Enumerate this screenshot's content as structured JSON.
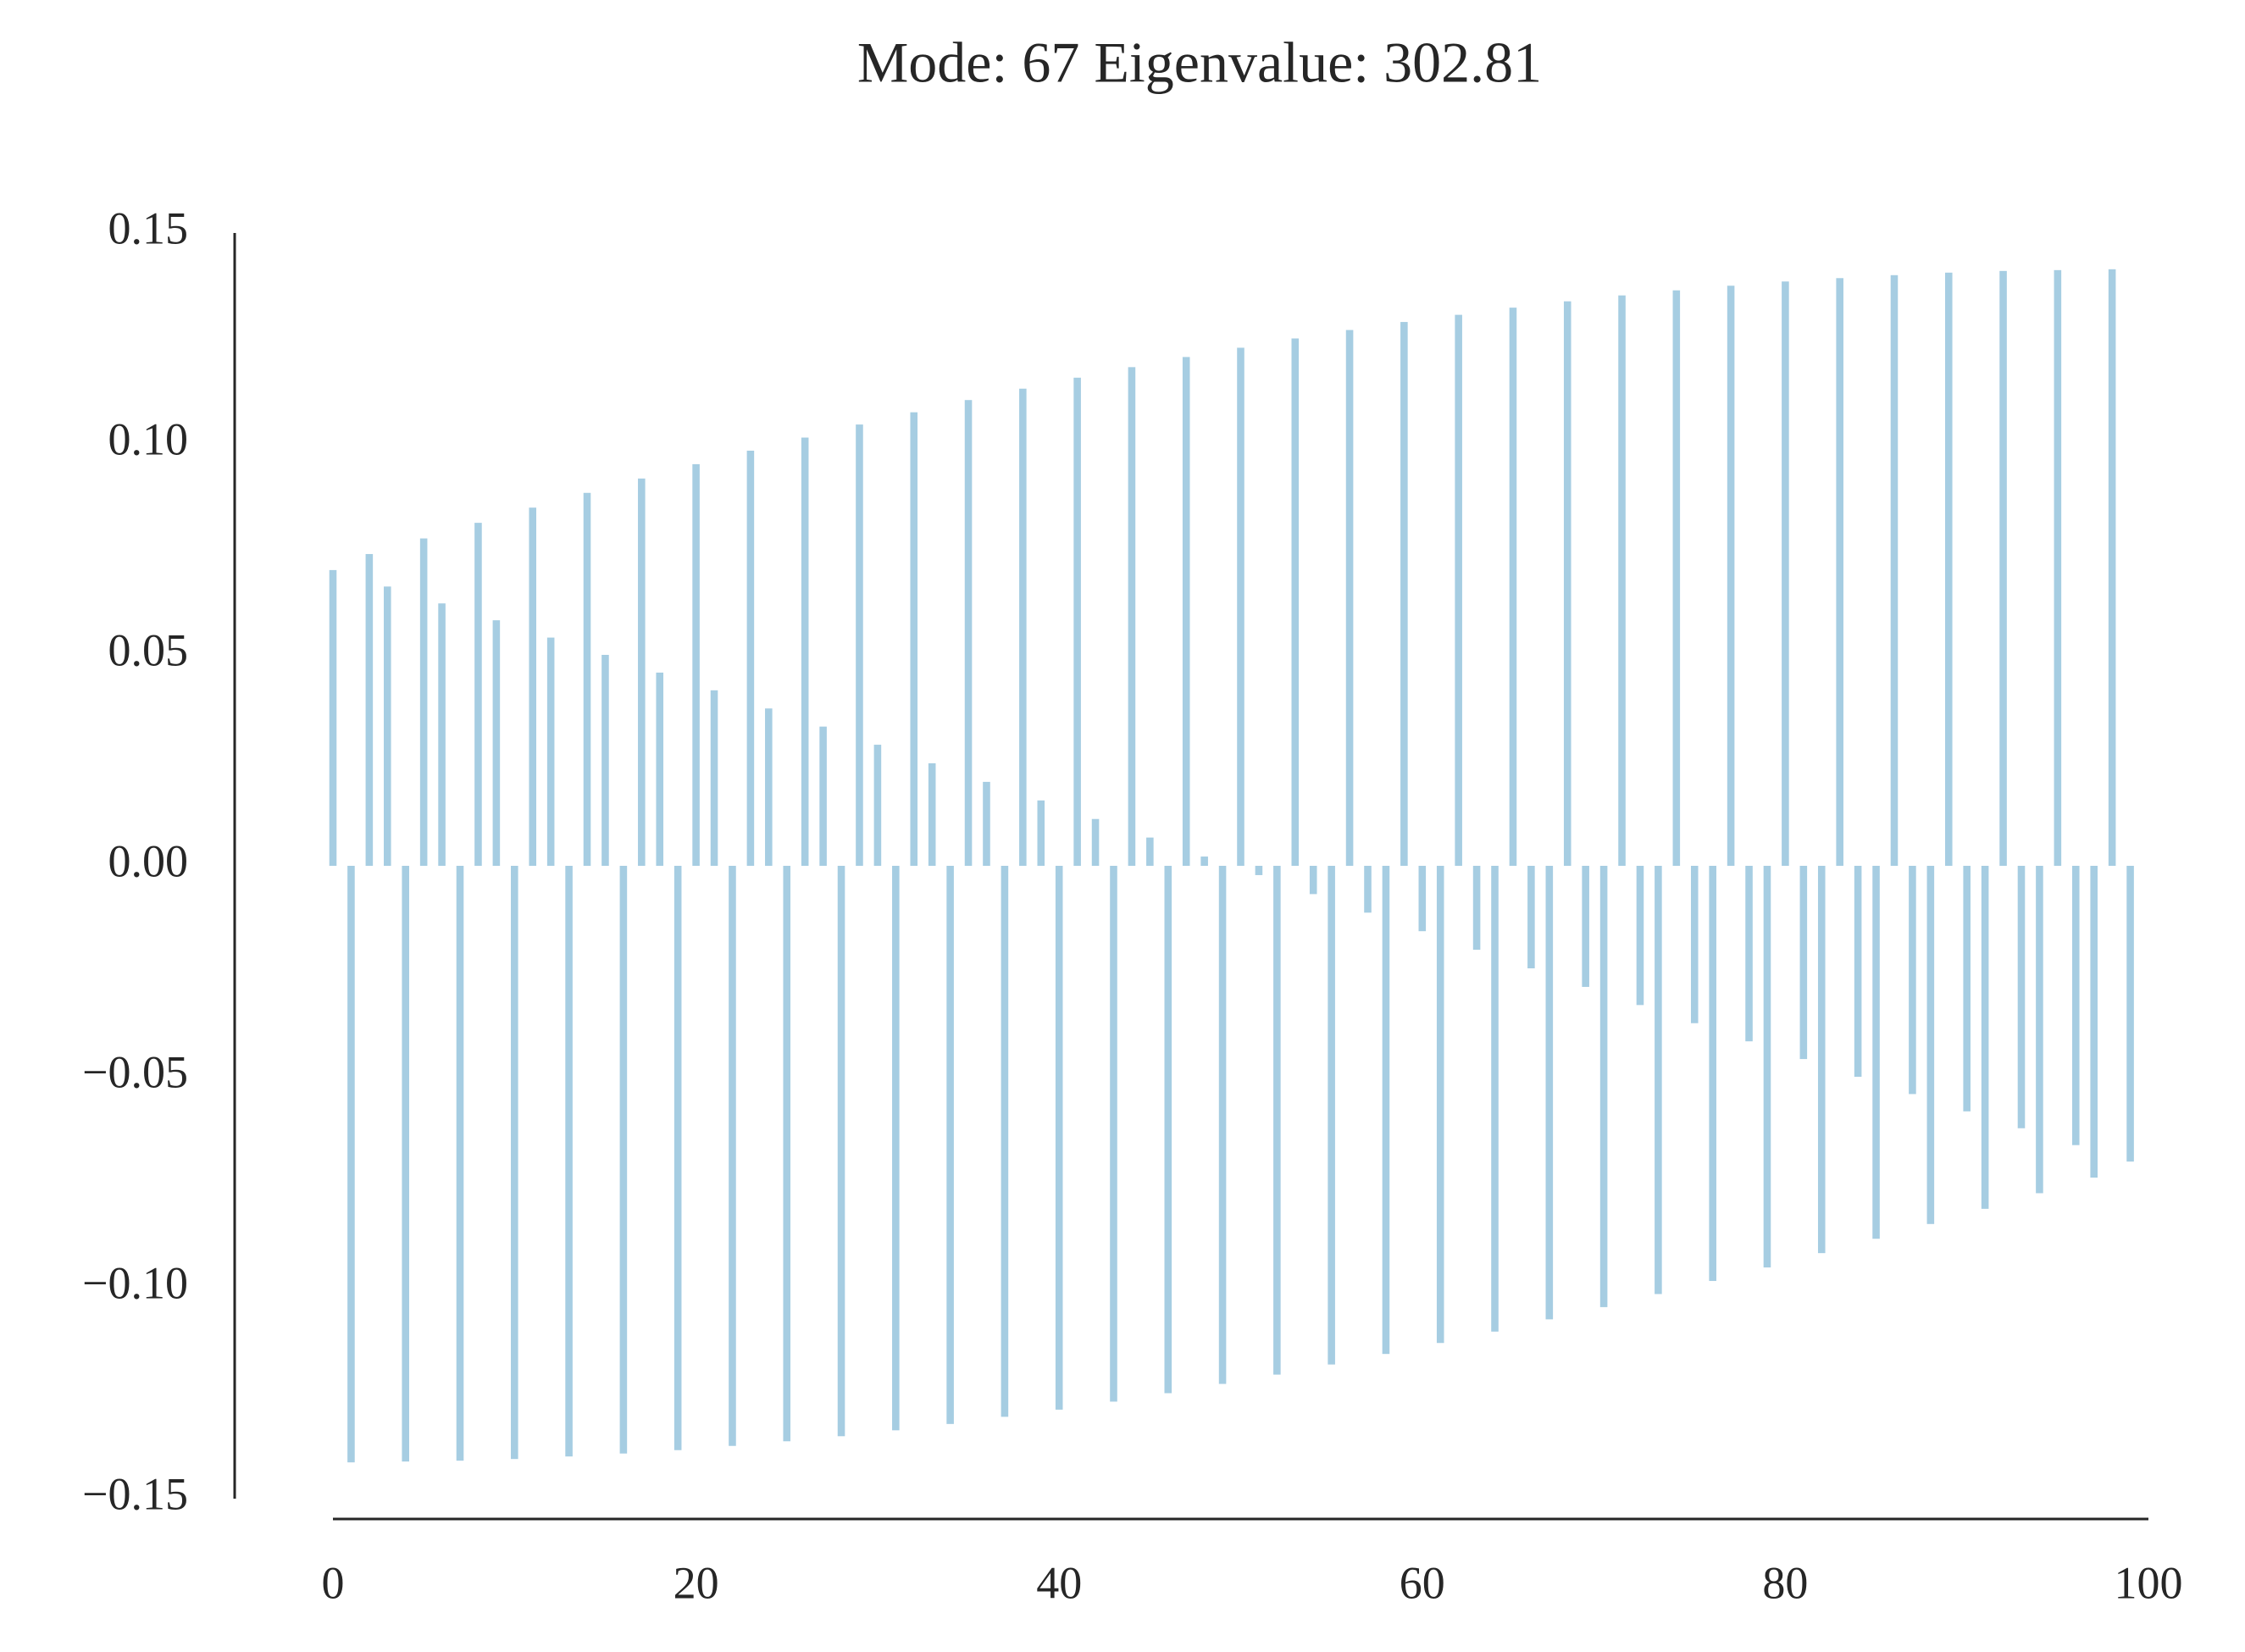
{
  "chart_data": {
    "type": "bar",
    "title": "Mode: 67 Eigenvalue: 302.81",
    "x": [
      0,
      1,
      2,
      3,
      4,
      5,
      6,
      7,
      8,
      9,
      10,
      11,
      12,
      13,
      14,
      15,
      16,
      17,
      18,
      19,
      20,
      21,
      22,
      23,
      24,
      25,
      26,
      27,
      28,
      29,
      30,
      31,
      32,
      33,
      34,
      35,
      36,
      37,
      38,
      39,
      40,
      41,
      42,
      43,
      44,
      45,
      46,
      47,
      48,
      49,
      50,
      51,
      52,
      53,
      54,
      55,
      56,
      57,
      58,
      59,
      60,
      61,
      62,
      63,
      64,
      65,
      66,
      67,
      68,
      69,
      70,
      71,
      72,
      73,
      74,
      75,
      76,
      77,
      78,
      79,
      80,
      81,
      82,
      83,
      84,
      85,
      86,
      87,
      88,
      89,
      90,
      91,
      92,
      93,
      94,
      95,
      96,
      97,
      98,
      99
    ],
    "values": [
      0.0701,
      -0.1414,
      0.0739,
      0.0662,
      -0.1412,
      0.0776,
      0.0622,
      -0.141,
      0.0813,
      0.0582,
      -0.1406,
      0.0849,
      0.0541,
      -0.14,
      0.0884,
      0.05,
      -0.1393,
      0.0918,
      0.0458,
      -0.1385,
      0.0952,
      0.0416,
      -0.1375,
      0.0984,
      0.0373,
      -0.1364,
      0.1015,
      0.033,
      -0.1352,
      0.1046,
      0.0287,
      -0.1338,
      0.1075,
      0.0243,
      -0.1323,
      0.1104,
      0.0199,
      -0.1306,
      0.1131,
      0.0155,
      -0.1289,
      0.1157,
      0.0111,
      -0.127,
      0.1182,
      0.0067,
      -0.125,
      0.1206,
      0.0022,
      -0.1228,
      0.1228,
      -0.0022,
      -0.1206,
      0.125,
      -0.0067,
      -0.1182,
      0.127,
      -0.0111,
      -0.1157,
      0.1289,
      -0.0155,
      -0.1131,
      0.1306,
      -0.0199,
      -0.1104,
      0.1323,
      -0.0243,
      -0.1075,
      0.1338,
      -0.0287,
      -0.1046,
      0.1352,
      -0.033,
      -0.1015,
      0.1364,
      -0.0373,
      -0.0984,
      0.1375,
      -0.0416,
      -0.0952,
      0.1385,
      -0.0458,
      -0.0918,
      0.1393,
      -0.05,
      -0.0884,
      0.14,
      -0.0541,
      -0.0849,
      0.1406,
      -0.0582,
      -0.0813,
      0.141,
      -0.0622,
      -0.0776,
      0.1412,
      -0.0662,
      -0.0739,
      0.1414,
      -0.0701
    ],
    "color": "#a6cde2",
    "xlim": [
      0,
      100
    ],
    "xticks": [
      0,
      20,
      40,
      60,
      80,
      100
    ],
    "ylim": [
      -0.15,
      0.15
    ],
    "yticks": [
      {
        "value": -0.15,
        "label": "−0.15"
      },
      {
        "value": -0.1,
        "label": "−0.10"
      },
      {
        "value": -0.05,
        "label": "−0.05"
      },
      {
        "value": 0,
        "label": "0.00"
      },
      0.05,
      {
        "value": 0.1,
        "label": "0.10"
      },
      0.15
    ],
    "grid": false
  }
}
